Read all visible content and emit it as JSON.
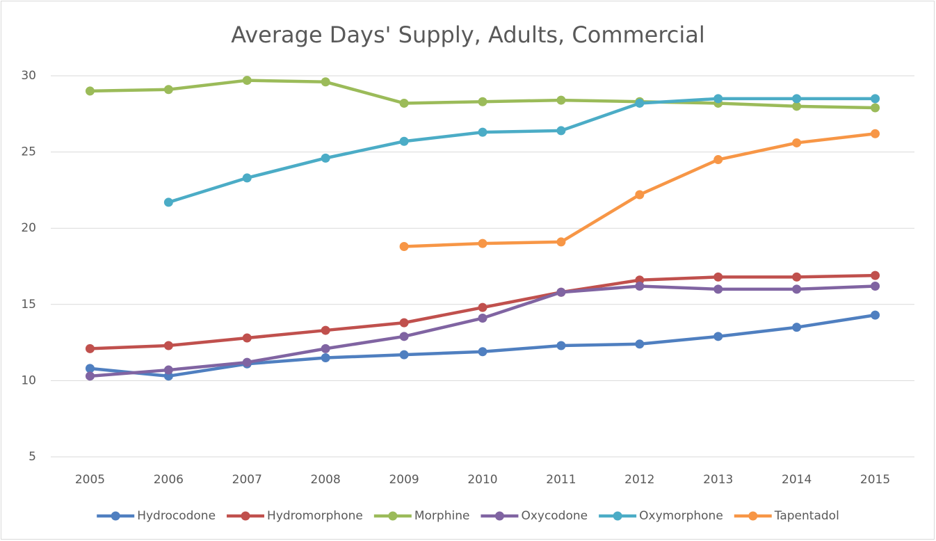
{
  "chart_data": {
    "type": "line",
    "title": "Average Days' Supply, Adults, Commercial",
    "categories": [
      "2005",
      "2006",
      "2007",
      "2008",
      "2009",
      "2010",
      "2011",
      "2012",
      "2013",
      "2014",
      "2015"
    ],
    "series": [
      {
        "name": "Hydrocodone",
        "color": "#4f7fc0",
        "values": [
          10.8,
          10.3,
          11.1,
          11.5,
          11.7,
          11.9,
          12.3,
          12.4,
          12.9,
          13.5,
          14.3
        ]
      },
      {
        "name": "Hydromorphone",
        "color": "#c0504d",
        "values": [
          12.1,
          12.3,
          12.8,
          13.3,
          13.8,
          14.8,
          15.8,
          16.6,
          16.8,
          16.8,
          16.9
        ]
      },
      {
        "name": "Morphine",
        "color": "#9bbb59",
        "values": [
          29.0,
          29.1,
          29.7,
          29.6,
          28.2,
          28.3,
          28.4,
          28.3,
          28.2,
          28.0,
          27.9
        ]
      },
      {
        "name": "Oxycodone",
        "color": "#8064a2",
        "values": [
          10.3,
          10.7,
          11.2,
          12.1,
          12.9,
          14.1,
          15.8,
          16.2,
          16.0,
          16.0,
          16.2
        ]
      },
      {
        "name": "Oxymorphone",
        "color": "#4bacc6",
        "values": [
          null,
          21.7,
          23.3,
          24.6,
          25.7,
          26.3,
          26.4,
          28.2,
          28.5,
          28.5,
          28.5
        ]
      },
      {
        "name": "Tapentadol",
        "color": "#f79646",
        "values": [
          null,
          null,
          null,
          null,
          18.8,
          19.0,
          19.1,
          22.2,
          24.5,
          25.6,
          26.2
        ]
      }
    ],
    "ylim": [
      5,
      30
    ],
    "yticks": [
      5,
      10,
      15,
      20,
      25,
      30
    ],
    "grid": true,
    "legend": "bottom"
  }
}
